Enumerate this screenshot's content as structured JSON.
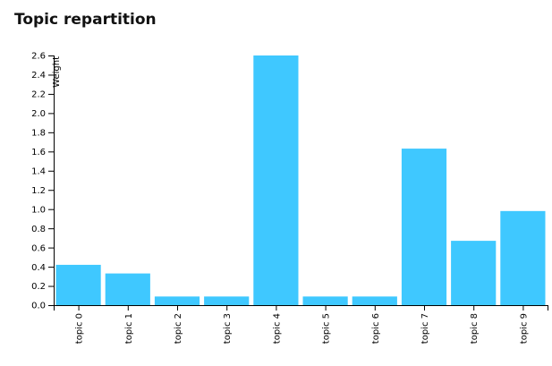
{
  "title": "Topic repartition",
  "chart_data": {
    "type": "bar",
    "title": "Topic repartition",
    "xlabel": "",
    "ylabel": "Weight",
    "categories": [
      "topic 0",
      "topic 1",
      "topic 2",
      "topic 3",
      "topic 4",
      "topic 5",
      "topic 6",
      "topic 7",
      "topic 8",
      "topic 9"
    ],
    "values": [
      0.42,
      0.33,
      0.09,
      0.09,
      2.6,
      0.09,
      0.09,
      1.63,
      0.67,
      0.98
    ],
    "yticks": [
      "0.0",
      "0.2",
      "0.4",
      "0.6",
      "0.8",
      "1.0",
      "1.2",
      "1.4",
      "1.6",
      "1.8",
      "2.0",
      "2.2",
      "2.4",
      "2.6"
    ],
    "ylim": [
      0,
      2.6
    ],
    "grid": false,
    "legend": "none",
    "bar_color": "#3fc8ff"
  }
}
